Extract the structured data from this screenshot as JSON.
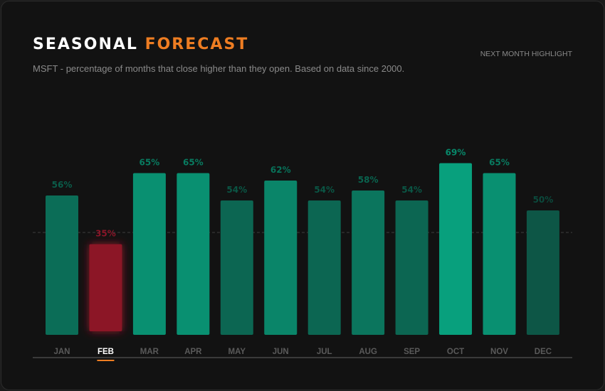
{
  "header": {
    "title_main": "SEASONAL",
    "title_accent": "FORECAST",
    "subtitle": "MSFT - percentage of months that close higher than they open. Based on data since 2000.",
    "highlight_label": "NEXT MONTH HIGHLIGHT"
  },
  "colors": {
    "accent": "#ee7d22",
    "highlight_bar": "#8c1528",
    "bar_low": "#0d5646",
    "bar_high": "#08a07d"
  },
  "chart_data": {
    "type": "bar",
    "categories": [
      "JAN",
      "FEB",
      "MAR",
      "APR",
      "MAY",
      "JUN",
      "JUL",
      "AUG",
      "SEP",
      "OCT",
      "NOV",
      "DEC"
    ],
    "values": [
      56,
      35,
      65,
      65,
      54,
      62,
      54,
      58,
      54,
      69,
      65,
      50
    ],
    "labels": [
      "56%",
      "35%",
      "65%",
      "65%",
      "54%",
      "62%",
      "54%",
      "58%",
      "54%",
      "69%",
      "65%",
      "50%"
    ],
    "highlighted": "FEB",
    "ylim": [
      0,
      100
    ],
    "grid": false,
    "legend": "none"
  }
}
